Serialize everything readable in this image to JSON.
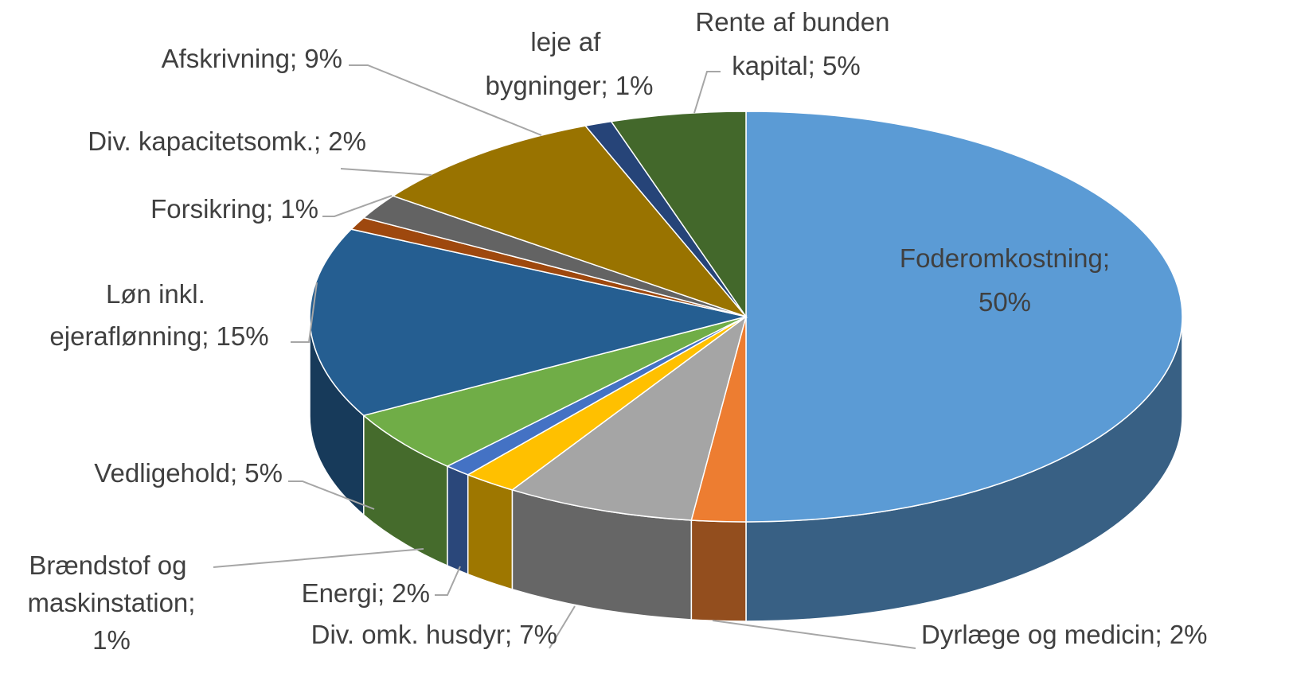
{
  "chart_data": {
    "type": "pie3d",
    "categories": [
      "Foderomkostning",
      "Dyrlæge og medicin",
      "Div. omk. husdyr",
      "Energi",
      "Brændstof og maskinstation",
      "Vedligehold",
      "Løn inkl. ejeraflønning",
      "Forsikring",
      "Div. kapacitetsomk.",
      "Afskrivning",
      "leje af bygninger",
      "Rente af bunden kapital"
    ],
    "values": [
      50,
      2,
      7,
      2,
      1,
      5,
      15,
      1,
      2,
      9,
      1,
      5
    ],
    "value_labels": [
      "50%",
      "2%",
      "7%",
      "2%",
      "1%",
      "5%",
      "15%",
      "1%",
      "2%",
      "9%",
      "1%",
      "5%"
    ],
    "label_separator": ";",
    "colors": [
      "#5b9bd5",
      "#ed7d31",
      "#a5a5a5",
      "#ffc000",
      "#4472c4",
      "#70ad47",
      "#255e91",
      "#9e480e",
      "#636363",
      "#997300",
      "#264478",
      "#43682b"
    ]
  }
}
